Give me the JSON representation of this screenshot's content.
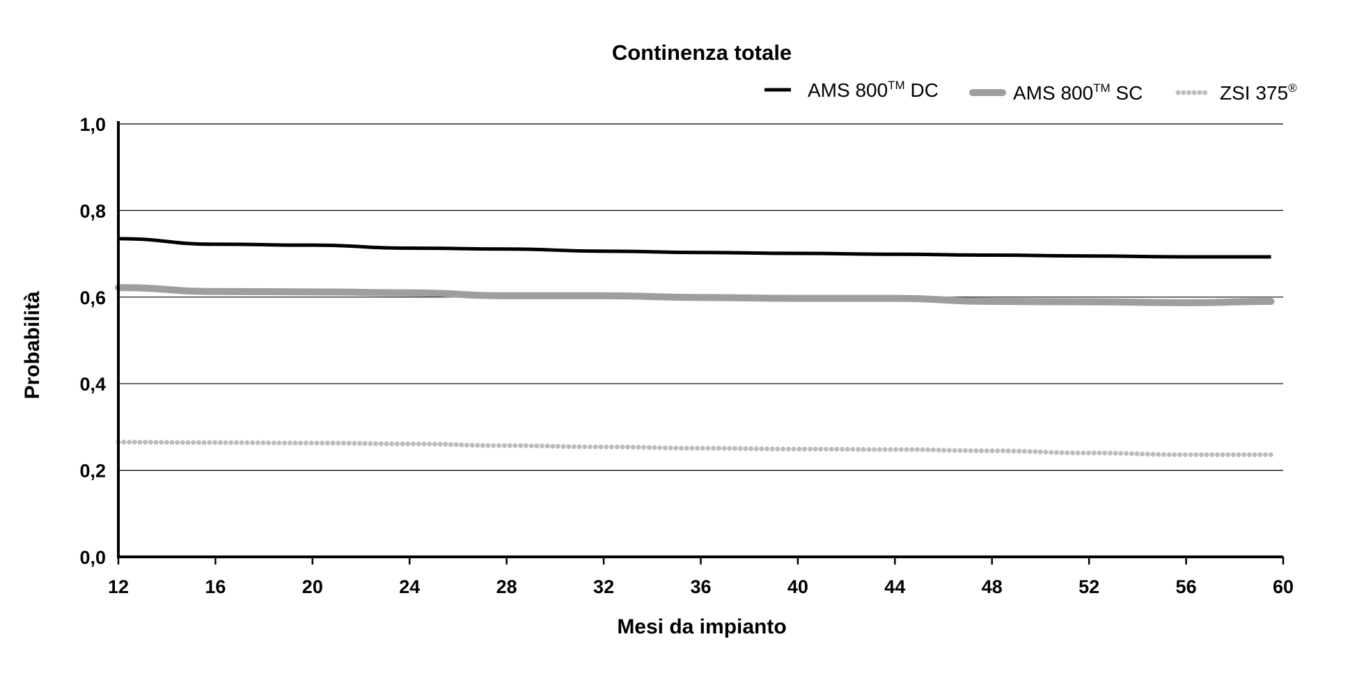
{
  "chart_data": {
    "type": "line",
    "title": "Continenza totale",
    "xlabel": "Mesi da impianto",
    "ylabel": "Probabilità",
    "xlim": [
      12,
      60
    ],
    "ylim": [
      0,
      1
    ],
    "x_ticks": [
      12,
      16,
      20,
      24,
      28,
      32,
      36,
      40,
      44,
      48,
      52,
      56,
      60
    ],
    "x_tick_labels": [
      "12",
      "16",
      "20",
      "24",
      "28",
      "32",
      "36",
      "40",
      "44",
      "48",
      "52",
      "56",
      "60"
    ],
    "y_ticks": [
      0,
      0.2,
      0.4,
      0.6,
      0.8,
      1.0
    ],
    "y_tick_labels": [
      "0,0",
      "0,2",
      "0,4",
      "0,6",
      "0,8",
      "1,0"
    ],
    "grid": "horizontal",
    "legend_placement": "top-right",
    "series": [
      {
        "name": "AMS 800™ DC",
        "legend_base": "AMS 800",
        "legend_sup": "TM",
        "legend_suffix": " DC",
        "color": "#000000",
        "style": "solid",
        "x": [
          12,
          16,
          20,
          24,
          28,
          32,
          36,
          40,
          44,
          48,
          52,
          56,
          59.5
        ],
        "y": [
          0.735,
          0.722,
          0.72,
          0.713,
          0.711,
          0.706,
          0.703,
          0.701,
          0.699,
          0.697,
          0.695,
          0.693,
          0.693
        ]
      },
      {
        "name": "AMS 800™ SC",
        "legend_base": "AMS 800",
        "legend_sup": "TM",
        "legend_suffix": " SC",
        "color": "#9e9e9e",
        "style": "thick",
        "x": [
          12,
          16,
          20,
          24,
          28,
          32,
          36,
          40,
          44,
          48,
          52,
          56,
          59.5
        ],
        "y": [
          0.622,
          0.613,
          0.612,
          0.61,
          0.603,
          0.603,
          0.599,
          0.597,
          0.597,
          0.59,
          0.589,
          0.587,
          0.59
        ]
      },
      {
        "name": "ZSI 375®",
        "legend_base": "ZSI 375",
        "legend_sup": "®",
        "legend_suffix": "",
        "color": "#bdbdbd",
        "style": "dotted",
        "x": [
          12,
          16,
          20,
          24,
          28,
          32,
          36,
          40,
          44,
          48,
          52,
          56,
          59.5
        ],
        "y": [
          0.265,
          0.264,
          0.263,
          0.261,
          0.257,
          0.254,
          0.251,
          0.249,
          0.248,
          0.245,
          0.24,
          0.236,
          0.236
        ]
      }
    ]
  }
}
